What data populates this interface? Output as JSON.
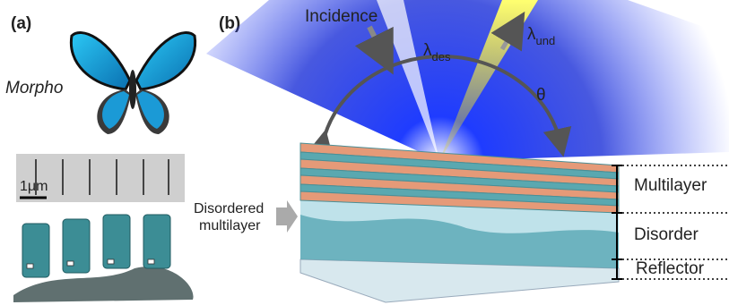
{
  "panel_a": {
    "label": "(a)",
    "species": "Morpho",
    "scale_bar": "1μm"
  },
  "panel_b": {
    "label": "(b)",
    "incidence": "Incidence",
    "lambda_des": {
      "symbol": "λ",
      "subscript": "des"
    },
    "lambda_und": {
      "symbol": "λ",
      "subscript": "und"
    },
    "angle": "θ",
    "input_label": [
      "Disordered",
      "multilayer"
    ],
    "layers": [
      "Multilayer",
      "Disorder",
      "Reflector"
    ]
  }
}
